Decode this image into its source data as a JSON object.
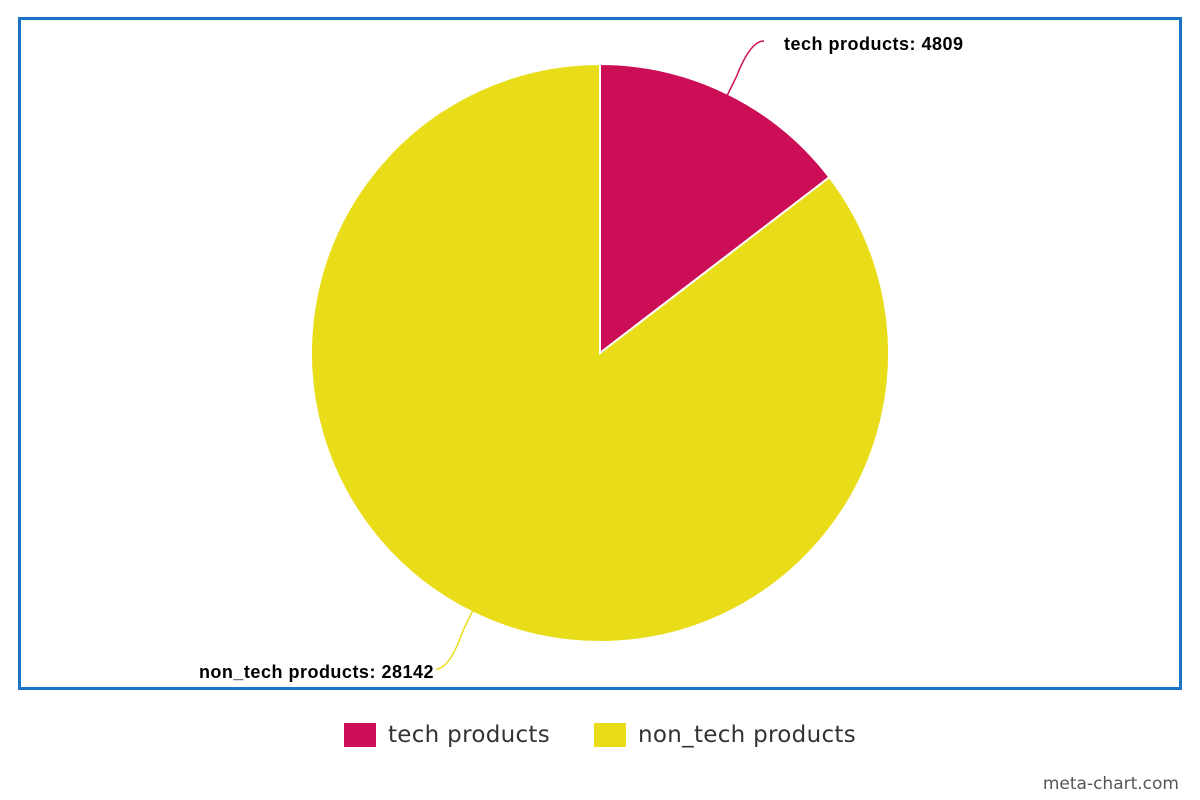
{
  "chart_data": {
    "type": "pie",
    "title": "",
    "slices": [
      {
        "name": "tech products",
        "value": 4809,
        "color": "#cb0e55",
        "label": "tech products: 4809"
      },
      {
        "name": "non_tech products",
        "value": 28142,
        "color": "#e9dd19",
        "label": "non_tech products: 28142"
      }
    ],
    "start_angle": "12 o'clock",
    "direction": "clockwise",
    "legend_position": "bottom-center",
    "border_color": "#1a73c4"
  },
  "legend": {
    "items": [
      {
        "label": "tech products",
        "color": "#cb0e55"
      },
      {
        "label": "non_tech products",
        "color": "#e9dd19"
      }
    ]
  },
  "watermark": "meta-chart.com"
}
